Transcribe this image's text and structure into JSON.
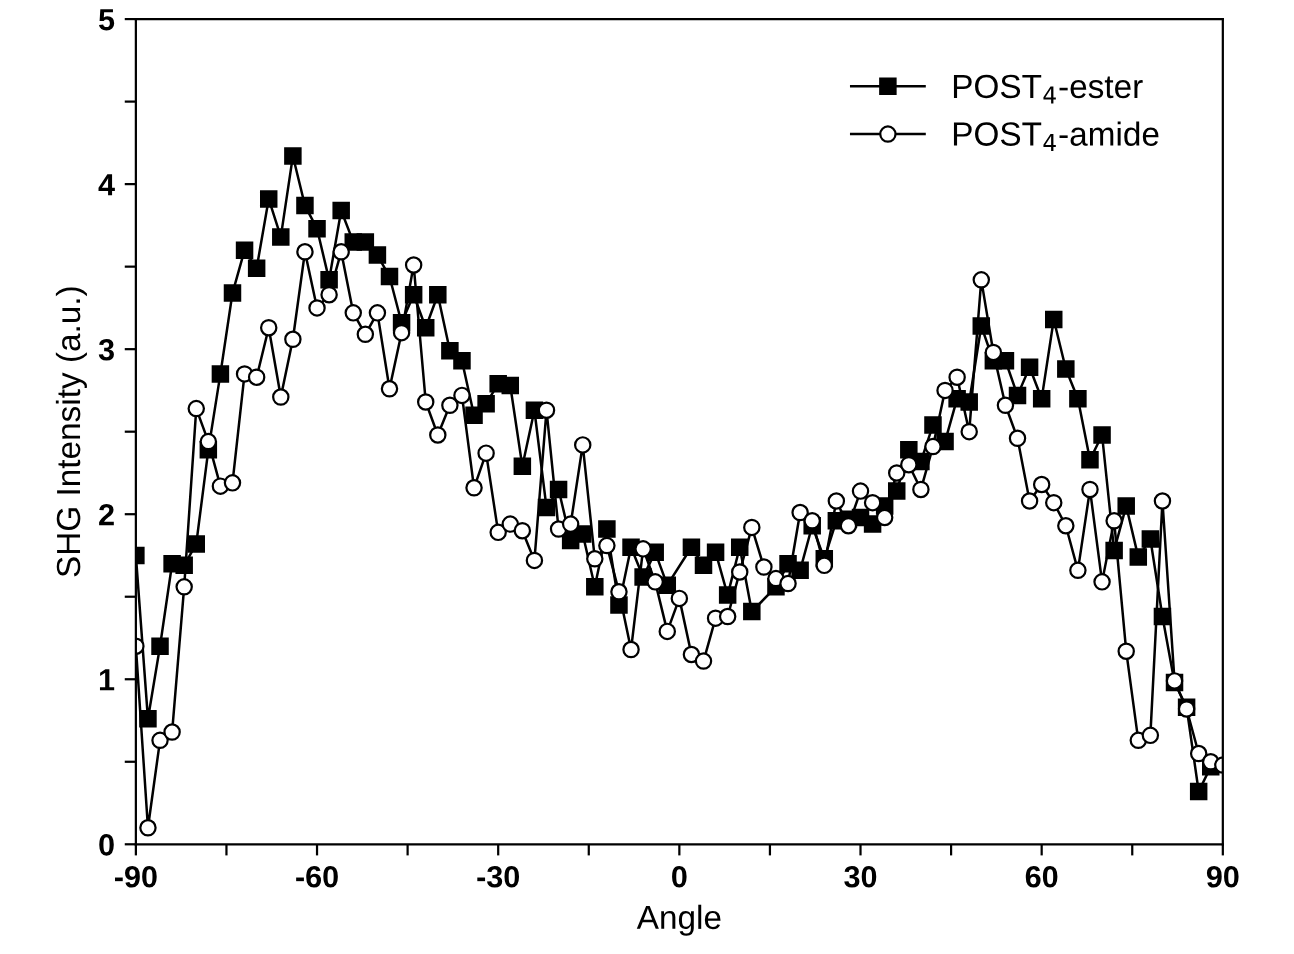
{
  "chart_data": {
    "type": "line",
    "xlabel": "Angle",
    "ylabel": "SHG Intensity (a.u.)",
    "xlim": [
      -90,
      90
    ],
    "ylim": [
      0,
      5
    ],
    "xticks": [
      -90,
      {
        "value": -75,
        "label": null
      },
      -60,
      {
        "value": -45,
        "label": null
      },
      -30,
      {
        "value": -15,
        "label": null
      },
      0,
      {
        "value": 15,
        "label": null
      },
      30,
      {
        "value": 45,
        "label": null
      },
      60,
      {
        "value": 75,
        "label": null
      },
      90
    ],
    "yticks": [
      0,
      {
        "value": 0.5,
        "label": null
      },
      1,
      {
        "value": 1.5,
        "label": null
      },
      2,
      {
        "value": 2.5,
        "label": null
      },
      3,
      {
        "value": 3.5,
        "label": null
      },
      4,
      {
        "value": 4.5,
        "label": null
      },
      5
    ],
    "grid": false,
    "legend": "top right",
    "line_style": "solid",
    "series": [
      {
        "name": "POST$_{4}$-ester",
        "color": "#000000",
        "marker": "square",
        "x": [
          -90,
          -88,
          -86,
          -84,
          -82,
          -80,
          -78,
          -76,
          -74,
          -72,
          -70,
          -68,
          -66,
          -64,
          -62,
          -60,
          -58,
          -56,
          -54,
          -52,
          -50,
          -48,
          -46,
          -44,
          -42,
          -40,
          -38,
          -36,
          -34,
          -32,
          -30,
          -28,
          -26,
          -24,
          -22,
          -20,
          -18,
          -16,
          -14,
          -12,
          -10,
          -8,
          -6,
          -4,
          -2,
          2,
          4,
          6,
          8,
          10,
          12,
          16,
          18,
          20,
          22,
          24,
          26,
          28,
          30,
          32,
          34,
          36,
          38,
          40,
          42,
          44,
          46,
          48,
          50,
          52,
          54,
          56,
          58,
          60,
          62,
          64,
          66,
          68,
          70,
          72,
          74,
          76,
          78,
          80,
          82,
          84,
          86,
          88
        ],
        "values": [
          1.75,
          0.76,
          1.2,
          1.7,
          1.69,
          1.82,
          2.39,
          2.85,
          3.34,
          3.6,
          3.49,
          3.91,
          3.68,
          4.17,
          3.87,
          3.73,
          3.42,
          3.84,
          3.65,
          3.65,
          3.57,
          3.44,
          3.16,
          3.33,
          3.13,
          3.33,
          2.99,
          2.93,
          2.6,
          2.67,
          2.79,
          2.78,
          2.29,
          2.63,
          2.04,
          2.15,
          1.84,
          1.88,
          1.56,
          1.91,
          1.45,
          1.8,
          1.62,
          1.77,
          1.57,
          1.8,
          1.69,
          1.77,
          1.51,
          1.8,
          1.41,
          1.56,
          1.7,
          1.66,
          1.93,
          1.73,
          1.96,
          1.97,
          1.98,
          1.94,
          2.05,
          2.14,
          2.39,
          2.32,
          2.54,
          2.44,
          2.7,
          2.68,
          3.14,
          2.93,
          2.93,
          2.72,
          2.89,
          2.7,
          3.18,
          2.88,
          2.7,
          2.33,
          2.48,
          1.78,
          2.05,
          1.74,
          1.85,
          1.38,
          0.98,
          0.83,
          0.32,
          0.47
        ]
      },
      {
        "name": "POST$_{4}$-amide",
        "color": "#000000",
        "marker": "circle",
        "x": [
          -90,
          -88,
          -86,
          -84,
          -82,
          -80,
          -78,
          -76,
          -74,
          -72,
          -70,
          -68,
          -66,
          -64,
          -62,
          -60,
          -58,
          -56,
          -54,
          -52,
          -50,
          -48,
          -46,
          -44,
          -42,
          -40,
          -38,
          -36,
          -34,
          -32,
          -30,
          -28,
          -26,
          -24,
          -22,
          -20,
          -18,
          -16,
          -14,
          -12,
          -10,
          -8,
          -6,
          -4,
          -2,
          0,
          2,
          4,
          6,
          8,
          10,
          12,
          14,
          16,
          18,
          20,
          22,
          24,
          26,
          28,
          30,
          32,
          34,
          36,
          38,
          40,
          42,
          44,
          46,
          48,
          50,
          52,
          54,
          56,
          58,
          60,
          62,
          64,
          66,
          68,
          70,
          72,
          74,
          76,
          78,
          80,
          82,
          84,
          86,
          88,
          90
        ],
        "values": [
          1.2,
          0.1,
          0.63,
          0.68,
          1.56,
          2.64,
          2.44,
          2.17,
          2.19,
          2.85,
          2.83,
          3.13,
          2.71,
          3.06,
          3.59,
          3.25,
          3.33,
          3.59,
          3.22,
          3.09,
          3.22,
          2.76,
          3.1,
          3.51,
          2.68,
          2.48,
          2.66,
          2.72,
          2.16,
          2.37,
          1.89,
          1.94,
          1.9,
          1.72,
          2.63,
          1.91,
          1.94,
          2.42,
          1.73,
          1.81,
          1.53,
          1.18,
          1.79,
          1.59,
          1.29,
          1.49,
          1.15,
          1.11,
          1.37,
          1.38,
          1.65,
          1.92,
          1.68,
          1.61,
          1.58,
          2.01,
          1.96,
          1.69,
          2.08,
          1.93,
          2.14,
          2.07,
          1.98,
          2.25,
          2.3,
          2.15,
          2.41,
          2.75,
          2.83,
          2.5,
          3.42,
          2.98,
          2.66,
          2.46,
          2.08,
          2.18,
          2.07,
          1.93,
          1.66,
          2.15,
          1.59,
          1.96,
          1.17,
          0.63,
          0.66,
          2.08,
          0.99,
          0.82,
          0.55,
          0.5,
          0.48
        ]
      }
    ]
  }
}
